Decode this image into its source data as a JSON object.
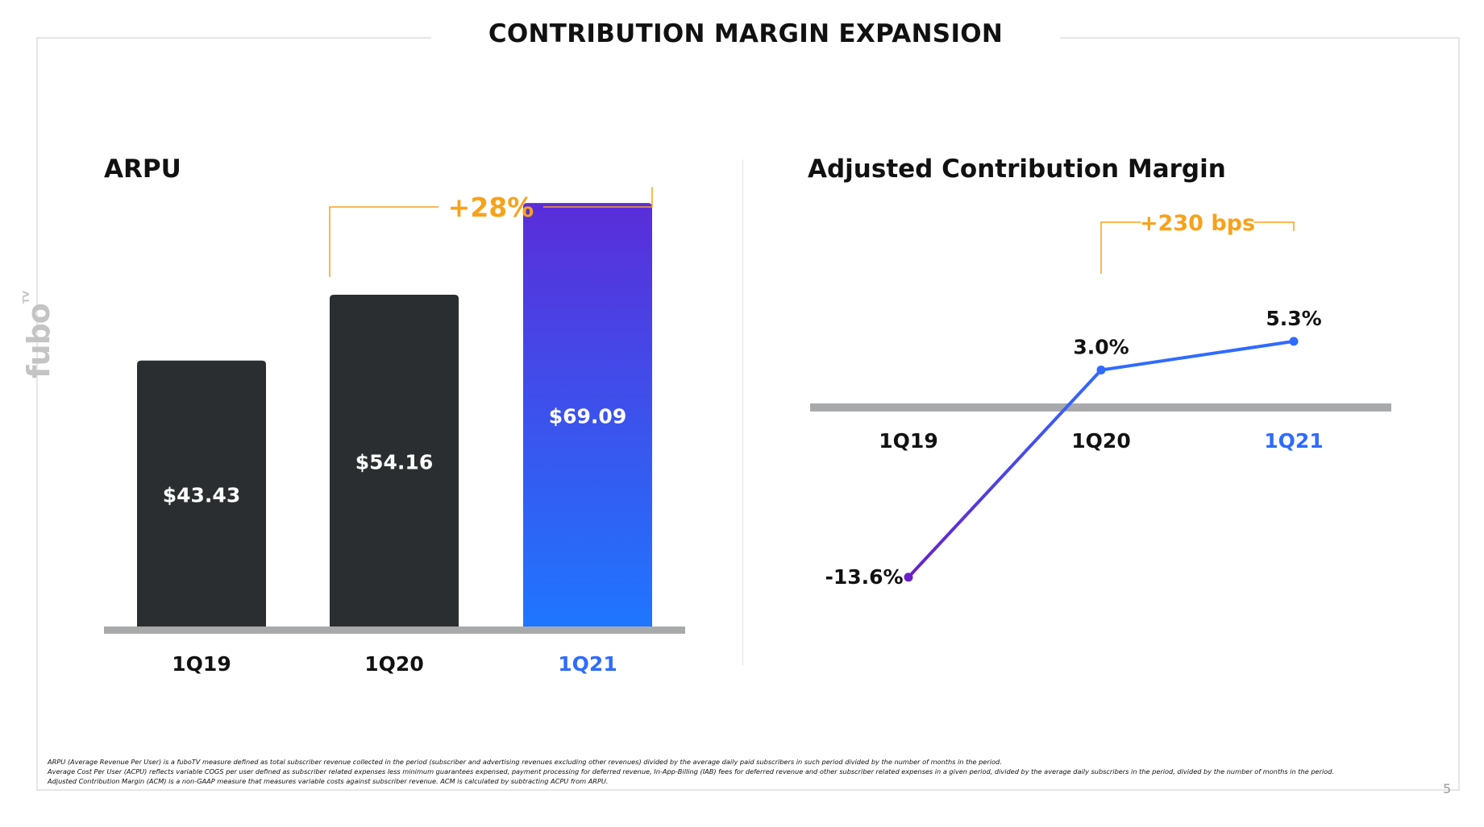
{
  "slide": {
    "title": "CONTRIBUTION MARGIN EXPANSION",
    "brand": "fubo",
    "brand_sup": "TV",
    "page_number": "5",
    "footnotes": [
      "ARPU (Average Revenue Per User) is a fuboTV measure defined as total subscriber revenue collected in the period (subscriber and advertising revenues excluding other revenues) divided by the average daily paid subscribers in such period divided by the number of months in the period.",
      "Average Cost Per User (ACPU) reflects variable COGS per user defined as subscriber related expenses less minimum guarantees expensed, payment processing for deferred revenue, In-App-Billing (IAB) fees for deferred revenue and other subscriber related expenses in a given period, divided by the average daily subscribers in the period, divided by the number of months in the period.",
      "Adjusted Contribution Margin (ACM) is a non-GAAP measure that measures variable costs against subscriber revenue. ACM is calculated by subtracting ACPU from ARPU."
    ]
  },
  "colors": {
    "bar_dark": "#2b2e31",
    "gradient_top": "#5a2dd9",
    "gradient_bottom": "#1f76ff",
    "accent_orange": "#f7a21b",
    "highlight_blue": "#2f6bff",
    "baseline_gray": "#a8a9ab",
    "line_start": "#6a1fc8",
    "line_end": "#2f6bff"
  },
  "chart_data": [
    {
      "type": "bar",
      "title": "ARPU",
      "categories": [
        "1Q19",
        "1Q20",
        "1Q21"
      ],
      "values": [
        43.43,
        54.16,
        69.09
      ],
      "value_labels": [
        "$43.43",
        "$54.16",
        "$69.09"
      ],
      "ylim": [
        0,
        75
      ],
      "highlight_category": "1Q21",
      "annotation": {
        "text": "+28%",
        "from": "1Q20",
        "to": "1Q21"
      }
    },
    {
      "type": "line",
      "title": "Adjusted Contribution Margin",
      "categories": [
        "1Q19",
        "1Q20",
        "1Q21"
      ],
      "values": [
        -13.6,
        3.0,
        5.3
      ],
      "value_labels": [
        "-13.6%",
        "3.0%",
        "5.3%"
      ],
      "ylim": [
        -15,
        7
      ],
      "highlight_category": "1Q21",
      "annotation": {
        "text": "+230 bps",
        "from": "1Q20",
        "to": "1Q21"
      }
    }
  ]
}
